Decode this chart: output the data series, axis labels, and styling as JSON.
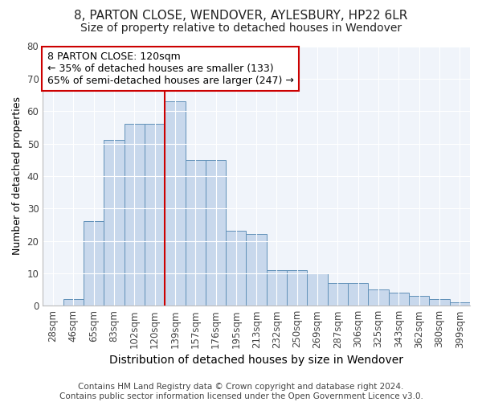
{
  "title": "8, PARTON CLOSE, WENDOVER, AYLESBURY, HP22 6LR",
  "subtitle": "Size of property relative to detached houses in Wendover",
  "xlabel": "Distribution of detached houses by size in Wendover",
  "ylabel": "Number of detached properties",
  "categories": [
    "28sqm",
    "46sqm",
    "65sqm",
    "83sqm",
    "102sqm",
    "120sqm",
    "139sqm",
    "157sqm",
    "176sqm",
    "195sqm",
    "213sqm",
    "232sqm",
    "250sqm",
    "269sqm",
    "287sqm",
    "306sqm",
    "325sqm",
    "343sqm",
    "362sqm",
    "380sqm",
    "399sqm"
  ],
  "values": [
    0,
    2,
    26,
    51,
    56,
    56,
    63,
    45,
    45,
    23,
    22,
    11,
    11,
    10,
    7,
    7,
    5,
    4,
    3,
    2,
    1
  ],
  "bar_color": "#c8d8ec",
  "bar_edge_color": "#6090b8",
  "vline_x_index": 5,
  "vline_color": "#cc0000",
  "annotation_text": "8 PARTON CLOSE: 120sqm\n← 35% of detached houses are smaller (133)\n65% of semi-detached houses are larger (247) →",
  "annotation_box_color": "#ffffff",
  "annotation_box_edge": "#cc0000",
  "ylim": [
    0,
    80
  ],
  "yticks": [
    0,
    10,
    20,
    30,
    40,
    50,
    60,
    70,
    80
  ],
  "footer": "Contains HM Land Registry data © Crown copyright and database right 2024.\nContains public sector information licensed under the Open Government Licence v3.0.",
  "bg_color": "#ffffff",
  "plot_bg_color": "#f0f4fa",
  "grid_color": "#ffffff",
  "title_fontsize": 11,
  "subtitle_fontsize": 10,
  "xlabel_fontsize": 10,
  "ylabel_fontsize": 9,
  "tick_fontsize": 8.5,
  "footer_fontsize": 7.5,
  "annotation_fontsize": 9
}
